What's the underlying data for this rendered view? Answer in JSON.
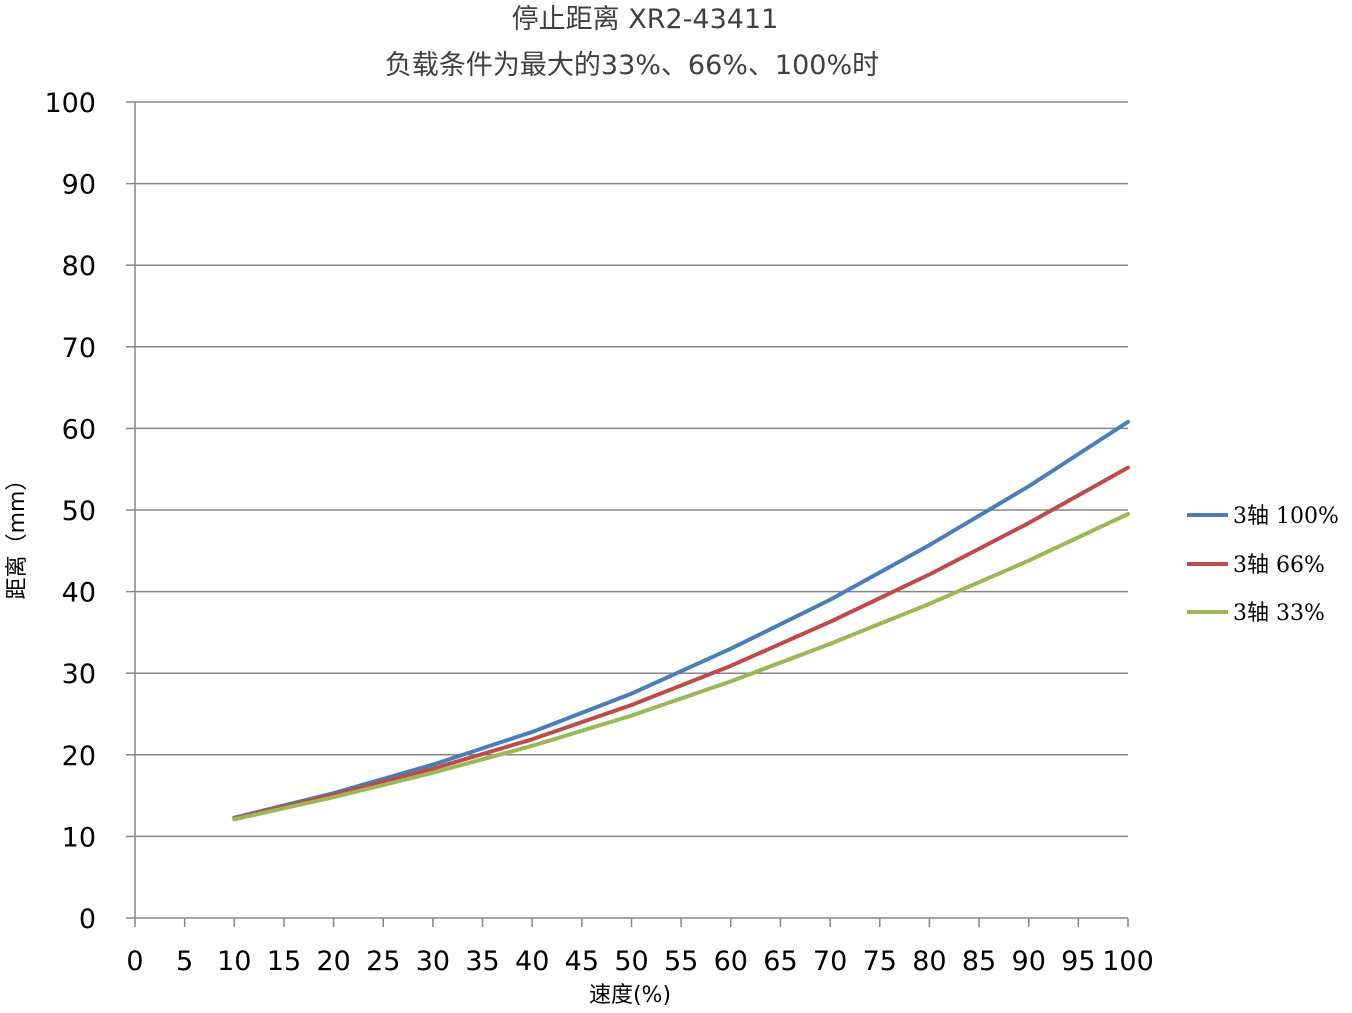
{
  "chart_data": {
    "type": "line",
    "title": "停止距离 XR2-43411",
    "subtitle": "负载条件为最大的33%、66%、100%时",
    "xlabel": "速度(%)",
    "ylabel": "距离（mm）",
    "xlim": [
      0,
      100
    ],
    "ylim": [
      0,
      100
    ],
    "x_ticks": [
      0,
      5,
      10,
      15,
      20,
      25,
      30,
      35,
      40,
      45,
      50,
      55,
      60,
      65,
      70,
      75,
      80,
      85,
      90,
      95,
      100
    ],
    "y_ticks": [
      0,
      10,
      20,
      30,
      40,
      50,
      60,
      70,
      80,
      90,
      100
    ],
    "grid": "horizontal",
    "legend_position": "right",
    "x": [
      10,
      20,
      30,
      40,
      50,
      60,
      70,
      80,
      90,
      100
    ],
    "series": [
      {
        "name": "3轴 100%",
        "color": "#4A7EBB",
        "values": [
          12.3,
          15.3,
          18.8,
          22.8,
          27.5,
          33.0,
          39.0,
          45.7,
          52.9,
          60.8
        ]
      },
      {
        "name": "3轴 66%",
        "color": "#BE4B48",
        "values": [
          12.2,
          15.1,
          18.3,
          21.9,
          26.1,
          30.9,
          36.3,
          42.1,
          48.4,
          55.2
        ]
      },
      {
        "name": "3轴 33%",
        "color": "#98B954",
        "values": [
          12.1,
          14.8,
          17.8,
          21.1,
          24.8,
          29.0,
          33.6,
          38.5,
          43.8,
          49.5
        ]
      }
    ]
  }
}
